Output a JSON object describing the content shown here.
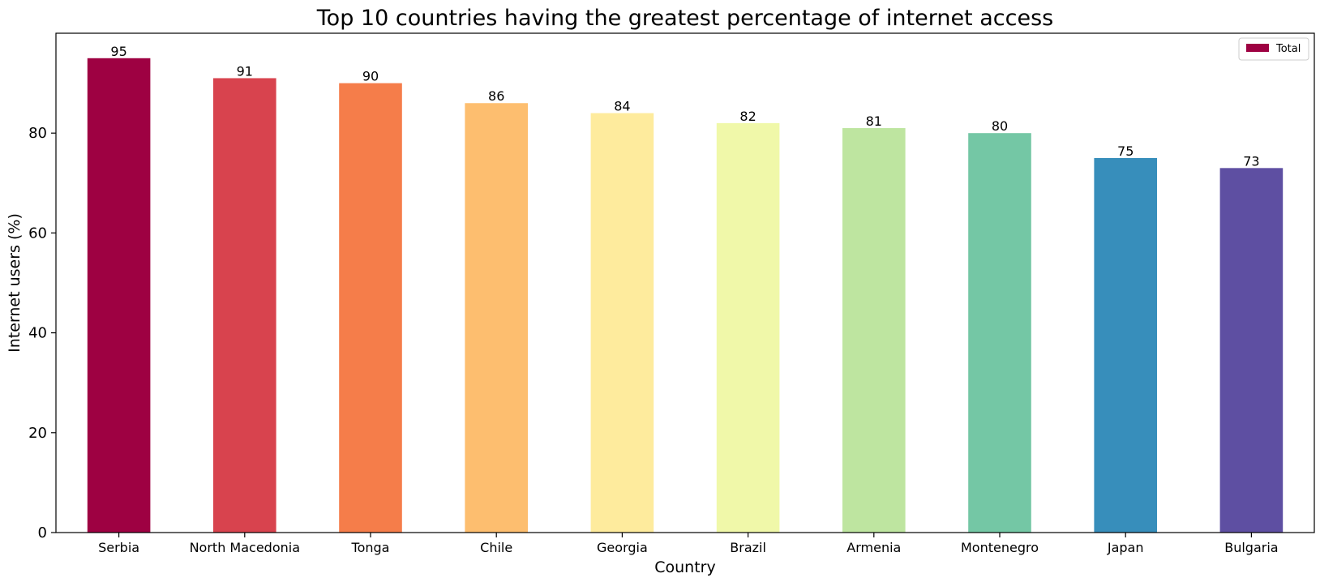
{
  "chart_data": {
    "type": "bar",
    "title": "Top 10 countries having the greatest percentage of internet access",
    "xlabel": "Country",
    "ylabel": "Internet users (%)",
    "ylim": [
      0,
      100
    ],
    "yticks": [
      0,
      20,
      40,
      60,
      80
    ],
    "grid": false,
    "legend": {
      "position": "top-right",
      "entries": [
        "Total"
      ]
    },
    "categories": [
      "Serbia",
      "North Macedonia",
      "Tonga",
      "Chile",
      "Georgia",
      "Brazil",
      "Armenia",
      "Montenegro",
      "Japan",
      "Bulgaria"
    ],
    "series": [
      {
        "name": "Total",
        "values": [
          95,
          91,
          90,
          86,
          84,
          82,
          81,
          80,
          75,
          73
        ],
        "colors": [
          "#9e0142",
          "#d8434e",
          "#f57d4a",
          "#fdbe6f",
          "#feeb9d",
          "#f0f8a9",
          "#bee5a0",
          "#74c7a5",
          "#378ebb",
          "#5e4fa2"
        ]
      }
    ]
  }
}
